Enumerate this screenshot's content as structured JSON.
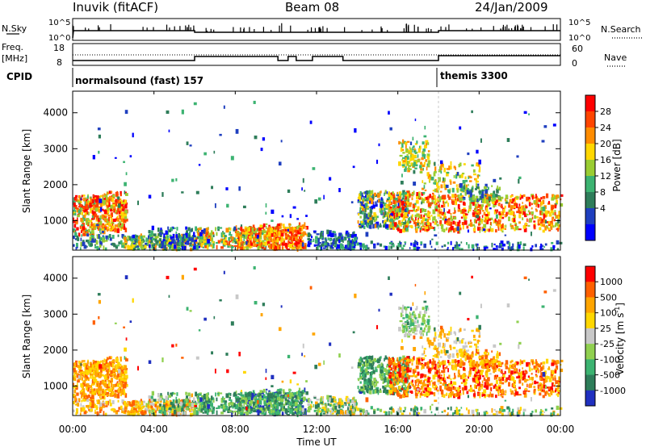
{
  "header": {
    "station": "Inuvik  (fitACF)",
    "beam": "Beam 08",
    "date": "24/Jan/2009"
  },
  "labels": {
    "n_sky": "N.Sky",
    "freq": "Freq.",
    "mhz": "[MHz]",
    "cpid": "CPID",
    "n_search": "N.Search",
    "nave": "Nave"
  },
  "cpid_segments": [
    {
      "label": "normalsound (fast) 157",
      "start_hour": 0
    },
    {
      "label": "themis 3300",
      "start_hour": 18
    }
  ],
  "nsky_axis": {
    "ticks": [
      "10^5",
      "10^0"
    ]
  },
  "nsearch_axis": {
    "ticks": [
      "10^5",
      "10^0"
    ]
  },
  "freq_axis": {
    "ticks": [
      "18",
      "8"
    ]
  },
  "nave_axis": {
    "ticks": [
      "60",
      "0"
    ]
  },
  "chart_data": [
    {
      "type": "heatmap",
      "name": "power-panel",
      "ylabel": "Slant Range [km]",
      "yticks": [
        1000,
        2000,
        3000,
        4000
      ],
      "ylim": [
        180,
        4600
      ],
      "xlim": [
        0,
        24
      ],
      "colorbar": {
        "label": "Power [dB]",
        "ticks": [
          "28",
          "24",
          "20",
          "16",
          "12",
          "8",
          "4"
        ],
        "colors": [
          "#0000ff",
          "#1f3fbf",
          "#2e7d5a",
          "#3cb371",
          "#9acd32",
          "#ffd700",
          "#ff8c00",
          "#ff4500",
          "#ff0000"
        ]
      }
    },
    {
      "type": "heatmap",
      "name": "velocity-panel",
      "ylabel": "Slant Range [km]",
      "yticks": [
        1000,
        2000,
        3000,
        4000
      ],
      "ylim": [
        180,
        4600
      ],
      "xlim": [
        0,
        24
      ],
      "colorbar": {
        "label": "Velocity [m s",
        "label_sup": "-1",
        "label_end": "]",
        "ticks": [
          "1000",
          "500",
          "100",
          "25",
          "-25",
          "-100",
          "-500",
          "-1000"
        ],
        "colors": [
          "#2030c0",
          "#2e7d5a",
          "#3cb371",
          "#90d050",
          "#c8c8c8",
          "#ffd700",
          "#ffa500",
          "#ff6000",
          "#ff0000"
        ]
      }
    }
  ],
  "xaxis": {
    "label": "Time UT",
    "ticks": [
      "00:00",
      "04:00",
      "08:00",
      "12:00",
      "16:00",
      "20:00",
      "00:00"
    ],
    "tick_hours": [
      0,
      4,
      8,
      12,
      16,
      20,
      24
    ]
  }
}
